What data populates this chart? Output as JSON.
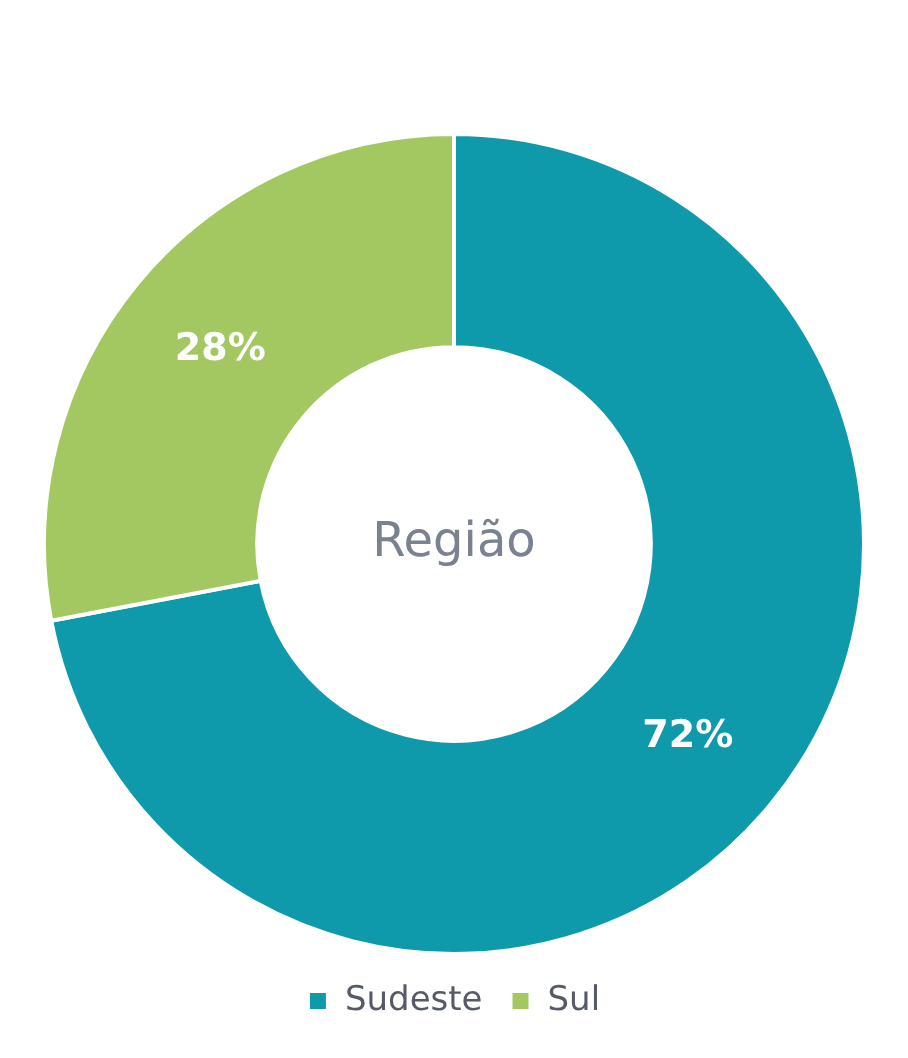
{
  "chart_data": {
    "type": "donut",
    "title": "Região",
    "categories": [
      "Sudeste",
      "Sul"
    ],
    "values": [
      72,
      28
    ],
    "colors": [
      "#0f9aab",
      "#a3c862"
    ],
    "value_labels": [
      "72%",
      "28%"
    ],
    "legend": "bottom"
  }
}
